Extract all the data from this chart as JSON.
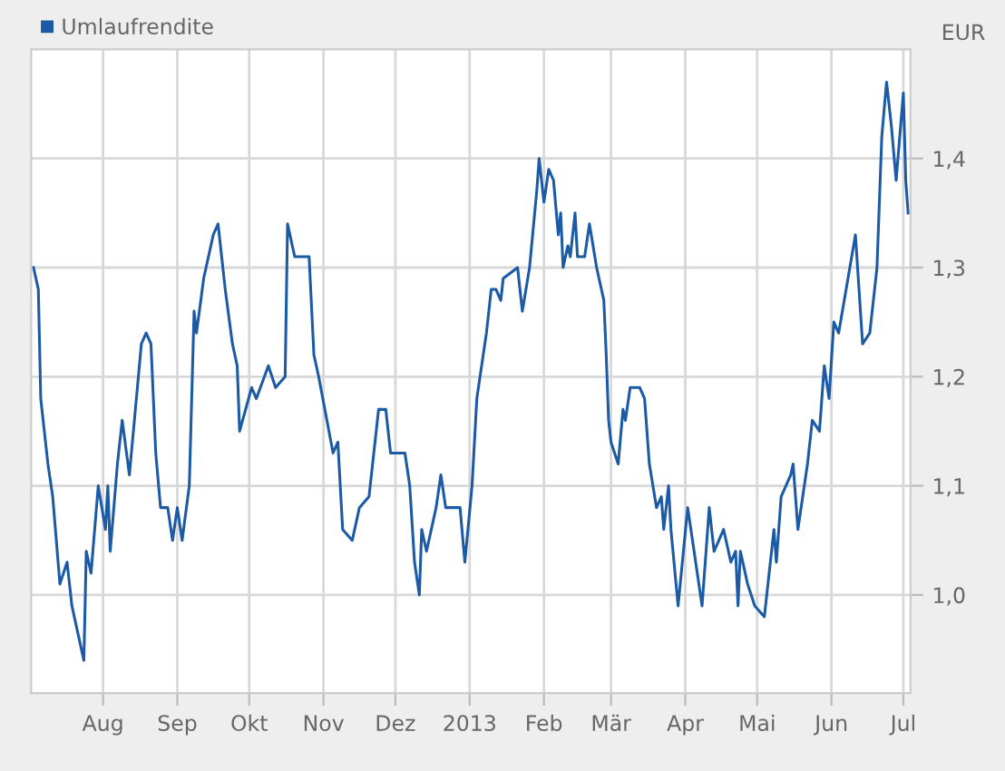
{
  "chart_data": {
    "type": "line",
    "ylabel": "EUR",
    "legend": "top left",
    "grid": true,
    "marker": "none",
    "line_style": "solid",
    "xlim": [
      "2012-07-02",
      "2013-07-04"
    ],
    "ylim": [
      0.91,
      1.5
    ],
    "xticks": [
      {
        "value": "2012-08-01",
        "label": "Aug"
      },
      {
        "value": "2012-09-01",
        "label": "Sep"
      },
      {
        "value": "2012-10-01",
        "label": "Okt"
      },
      {
        "value": "2012-11-01",
        "label": "Nov"
      },
      {
        "value": "2012-12-01",
        "label": "Dez"
      },
      {
        "value": "2013-01-01",
        "label": "2013"
      },
      {
        "value": "2013-02-01",
        "label": "Feb"
      },
      {
        "value": "2013-03-01",
        "label": "Mär"
      },
      {
        "value": "2013-04-01",
        "label": "Apr"
      },
      {
        "value": "2013-05-01",
        "label": "Mai"
      },
      {
        "value": "2013-06-01",
        "label": "Jun"
      },
      {
        "value": "2013-07-01",
        "label": "Jul"
      }
    ],
    "yticks": [
      {
        "value": 1.0,
        "label": "1,0"
      },
      {
        "value": 1.1,
        "label": "1,1"
      },
      {
        "value": 1.2,
        "label": "1,2"
      },
      {
        "value": 1.3,
        "label": "1,3"
      },
      {
        "value": 1.4,
        "label": "1,4"
      }
    ],
    "x": [
      "2012-07-03",
      "2012-07-05",
      "2012-07-06",
      "2012-07-09",
      "2012-07-11",
      "2012-07-14",
      "2012-07-17",
      "2012-07-19",
      "2012-07-24",
      "2012-07-25",
      "2012-07-27",
      "2012-07-30",
      "2012-08-02",
      "2012-08-03",
      "2012-08-04",
      "2012-08-07",
      "2012-08-09",
      "2012-08-12",
      "2012-08-17",
      "2012-08-19",
      "2012-08-21",
      "2012-08-23",
      "2012-08-25",
      "2012-08-28",
      "2012-08-30",
      "2012-09-01",
      "2012-09-03",
      "2012-09-06",
      "2012-09-08",
      "2012-09-09",
      "2012-09-12",
      "2012-09-16",
      "2012-09-18",
      "2012-09-21",
      "2012-09-24",
      "2012-09-26",
      "2012-09-27",
      "2012-10-02",
      "2012-10-04",
      "2012-10-09",
      "2012-10-12",
      "2012-10-16",
      "2012-10-17",
      "2012-10-20",
      "2012-10-24",
      "2012-10-26",
      "2012-10-28",
      "2012-10-30",
      "2012-11-05",
      "2012-11-07",
      "2012-11-09",
      "2012-11-13",
      "2012-11-16",
      "2012-11-20",
      "2012-11-24",
      "2012-11-27",
      "2012-11-29",
      "2012-12-05",
      "2012-12-07",
      "2012-12-09",
      "2012-12-11",
      "2012-12-12",
      "2012-12-14",
      "2012-12-18",
      "2012-12-20",
      "2012-12-22",
      "2012-12-28",
      "2012-12-30",
      "2013-01-02",
      "2013-01-04",
      "2013-01-08",
      "2013-01-10",
      "2013-01-12",
      "2013-01-14",
      "2013-01-15",
      "2013-01-21",
      "2013-01-23",
      "2013-01-26",
      "2013-01-29",
      "2013-01-30",
      "2013-02-01",
      "2013-02-03",
      "2013-02-05",
      "2013-02-07",
      "2013-02-08",
      "2013-02-09",
      "2013-02-11",
      "2013-02-12",
      "2013-02-14",
      "2013-02-15",
      "2013-02-18",
      "2013-02-20",
      "2013-02-23",
      "2013-02-26",
      "2013-02-27",
      "2013-02-28",
      "2013-03-01",
      "2013-03-04",
      "2013-03-06",
      "2013-03-07",
      "2013-03-09",
      "2013-03-13",
      "2013-03-15",
      "2013-03-17",
      "2013-03-20",
      "2013-03-22",
      "2013-03-23",
      "2013-03-25",
      "2013-03-26",
      "2013-03-29",
      "2013-04-02",
      "2013-04-08",
      "2013-04-11",
      "2013-04-13",
      "2013-04-17",
      "2013-04-20",
      "2013-04-22",
      "2013-04-23",
      "2013-04-24",
      "2013-04-27",
      "2013-04-30",
      "2013-05-04",
      "2013-05-05",
      "2013-05-08",
      "2013-05-09",
      "2013-05-11",
      "2013-05-15",
      "2013-05-16",
      "2013-05-18",
      "2013-05-22",
      "2013-05-24",
      "2013-05-27",
      "2013-05-29",
      "2013-05-31",
      "2013-06-02",
      "2013-06-04",
      "2013-06-11",
      "2013-06-14",
      "2013-06-17",
      "2013-06-20",
      "2013-06-22",
      "2013-06-24",
      "2013-06-26",
      "2013-06-28",
      "2013-07-01",
      "2013-07-02",
      "2013-07-03"
    ],
    "series": [
      {
        "name": "Umlaufrendite",
        "color": "#1c5aa6",
        "values": [
          1.3,
          1.28,
          1.18,
          1.12,
          1.09,
          1.01,
          1.03,
          0.99,
          0.94,
          1.04,
          1.02,
          1.1,
          1.06,
          1.1,
          1.04,
          1.12,
          1.16,
          1.11,
          1.23,
          1.24,
          1.23,
          1.13,
          1.08,
          1.08,
          1.05,
          1.08,
          1.05,
          1.1,
          1.26,
          1.24,
          1.29,
          1.33,
          1.34,
          1.28,
          1.23,
          1.21,
          1.15,
          1.19,
          1.18,
          1.21,
          1.19,
          1.2,
          1.34,
          1.31,
          1.31,
          1.31,
          1.22,
          1.2,
          1.13,
          1.14,
          1.06,
          1.05,
          1.08,
          1.09,
          1.17,
          1.17,
          1.13,
          1.13,
          1.1,
          1.03,
          1.0,
          1.06,
          1.04,
          1.08,
          1.11,
          1.08,
          1.08,
          1.03,
          1.1,
          1.18,
          1.24,
          1.28,
          1.28,
          1.27,
          1.29,
          1.3,
          1.26,
          1.3,
          1.37,
          1.4,
          1.36,
          1.39,
          1.38,
          1.33,
          1.35,
          1.3,
          1.32,
          1.31,
          1.35,
          1.31,
          1.31,
          1.34,
          1.3,
          1.27,
          1.22,
          1.16,
          1.14,
          1.12,
          1.17,
          1.16,
          1.19,
          1.19,
          1.18,
          1.12,
          1.08,
          1.09,
          1.06,
          1.1,
          1.06,
          0.99,
          1.08,
          0.99,
          1.08,
          1.04,
          1.06,
          1.03,
          1.04,
          0.99,
          1.04,
          1.01,
          0.99,
          0.98,
          1.0,
          1.06,
          1.03,
          1.09,
          1.11,
          1.12,
          1.06,
          1.12,
          1.16,
          1.15,
          1.21,
          1.18,
          1.25,
          1.24,
          1.33,
          1.23,
          1.24,
          1.3,
          1.42,
          1.47,
          1.43,
          1.38,
          1.46,
          1.38,
          1.35
        ]
      }
    ]
  }
}
